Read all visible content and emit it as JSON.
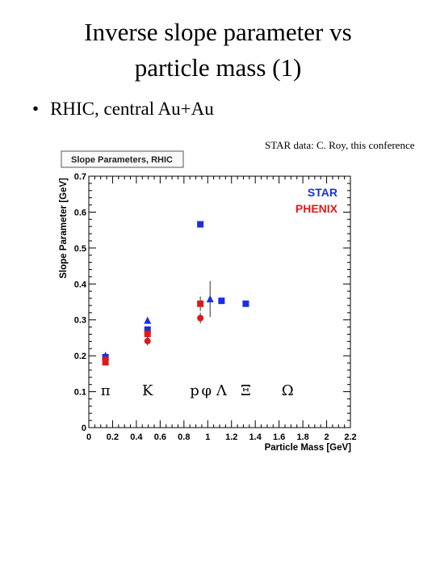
{
  "slide": {
    "title_line1": "Inverse slope parameter vs",
    "title_line2": "particle mass (1)",
    "bullet": "RHIC, central Au+Au",
    "credit": "STAR data: C. Roy, this conference"
  },
  "chart_data": {
    "type": "scatter",
    "title": "Slope Parameters, RHIC",
    "xlabel": "Particle Mass [GeV]",
    "ylabel": "Slope Parameter [GeV]",
    "xlim": [
      0,
      2.2
    ],
    "ylim": [
      0,
      0.7
    ],
    "xticks": [
      "0",
      "0.2",
      "0.4",
      "0.6",
      "0.8",
      "1",
      "1.2",
      "1.4",
      "1.6",
      "1.8",
      "2",
      "2.2"
    ],
    "yticks": [
      "0",
      "0.1",
      "0.2",
      "0.3",
      "0.4",
      "0.5",
      "0.6",
      "0.7"
    ],
    "grid": false,
    "legend_position": "top-right",
    "colors": {
      "STAR": "#1a2fe0",
      "PHENIX": "#e01a1a"
    },
    "series": [
      {
        "name": "STAR",
        "points": [
          {
            "x": 0.14,
            "y": 0.196,
            "marker": "square"
          },
          {
            "x": 0.14,
            "y": 0.2,
            "marker": "triangle"
          },
          {
            "x": 0.494,
            "y": 0.273,
            "marker": "square"
          },
          {
            "x": 0.494,
            "y": 0.298,
            "marker": "triangle"
          },
          {
            "x": 0.938,
            "y": 0.566,
            "marker": "square"
          },
          {
            "x": 1.02,
            "y": 0.358,
            "marker": "triangle",
            "err": 0.05
          },
          {
            "x": 1.116,
            "y": 0.353,
            "marker": "square"
          },
          {
            "x": 1.32,
            "y": 0.345,
            "marker": "square"
          }
        ]
      },
      {
        "name": "PHENIX",
        "points": [
          {
            "x": 0.14,
            "y": 0.182,
            "marker": "square"
          },
          {
            "x": 0.14,
            "y": 0.19,
            "marker": "circle"
          },
          {
            "x": 0.494,
            "y": 0.261,
            "marker": "square",
            "err": 0.015
          },
          {
            "x": 0.494,
            "y": 0.241,
            "marker": "circle",
            "err": 0.012
          },
          {
            "x": 0.938,
            "y": 0.345,
            "marker": "square",
            "err": 0.02
          },
          {
            "x": 0.938,
            "y": 0.305,
            "marker": "circle",
            "err": 0.015
          }
        ]
      }
    ],
    "particle_labels": [
      {
        "text": "π",
        "x": 0.14
      },
      {
        "text": "K",
        "x": 0.494
      },
      {
        "text": "p",
        "x": 0.89
      },
      {
        "text": "φ",
        "x": 0.99
      },
      {
        "text": "Λ",
        "x": 1.116
      },
      {
        "text": "Ξ",
        "x": 1.32
      },
      {
        "text": "Ω",
        "x": 1.672
      }
    ]
  }
}
